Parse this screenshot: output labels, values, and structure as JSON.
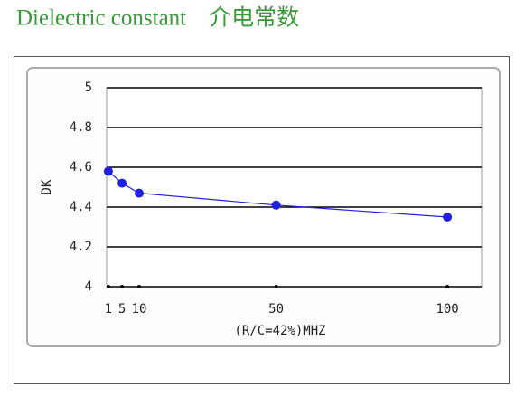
{
  "chart_data": {
    "type": "line",
    "title": "Dielectric constant　介电常数",
    "x_label": "(R/C=42%)MHZ",
    "y_label": "DK",
    "x": [
      1,
      5,
      10,
      50,
      100
    ],
    "series": [
      {
        "name": "DK",
        "color": "#1f1fe0",
        "values": [
          4.58,
          4.52,
          4.47,
          4.41,
          4.35
        ]
      }
    ],
    "xlim": [
      0.5,
      110
    ],
    "xticks": [
      1,
      5,
      10,
      50,
      100
    ],
    "ylim": [
      4,
      5
    ],
    "yticks": [
      4,
      4.2,
      4.4,
      4.6,
      4.8,
      5
    ],
    "grid": true
  }
}
